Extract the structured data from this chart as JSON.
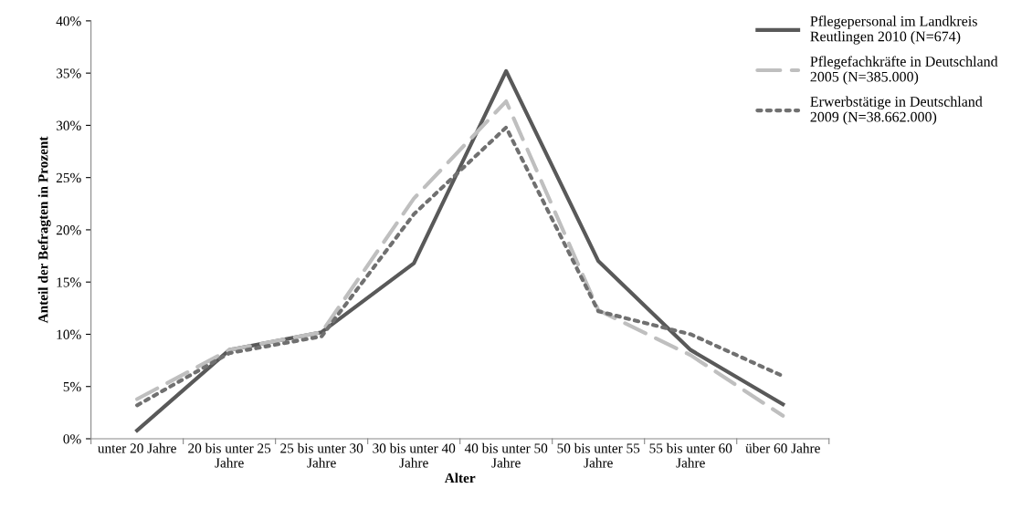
{
  "chart_data": {
    "type": "line",
    "xlabel": "Alter",
    "ylabel": "Anteil der Befragten in Prozent",
    "categories": [
      "unter 20 Jahre",
      "20 bis unter 25\nJahre",
      "25 bis unter 30\nJahre",
      "30 bis unter 40\nJahre",
      "40 bis unter 50\nJahre",
      "50 bis unter 55\nJahre",
      "55 bis unter 60\nJahre",
      "über 60 Jahre"
    ],
    "series": [
      {
        "name": "Pflegepersonal im Landkreis\nReutlingen 2010 (N=674)",
        "color": "#595959",
        "line_style": "solid",
        "values": [
          0.8,
          8.5,
          10.2,
          16.8,
          35.2,
          17.0,
          8.5,
          3.3
        ]
      },
      {
        "name": "Pflegefachkräfte in Deutschland\n2005 (N=385.000)",
        "color": "#bfbfbf",
        "line_style": "dashed",
        "values": [
          3.8,
          8.5,
          10.2,
          23.0,
          32.3,
          12.3,
          8.0,
          2.2
        ]
      },
      {
        "name": "Erwerbstätige in Deutschland\n2009 (N=38.662.000)",
        "color": "#707070",
        "line_style": "dotted",
        "values": [
          3.2,
          8.2,
          9.8,
          21.5,
          29.8,
          12.2,
          10.0,
          6.0
        ]
      }
    ],
    "ylim": [
      0,
      40
    ],
    "yticks": [
      {
        "value": 0,
        "label": "0%"
      },
      {
        "value": 5,
        "label": "5%"
      },
      {
        "value": 10,
        "label": "10%"
      },
      {
        "value": 15,
        "label": "15%"
      },
      {
        "value": 20,
        "label": "20%"
      },
      {
        "value": 25,
        "label": "25%"
      },
      {
        "value": 30,
        "label": "30%"
      },
      {
        "value": 35,
        "label": "35%"
      },
      {
        "value": 40,
        "label": "40%"
      }
    ],
    "grid": false,
    "legend": "top right",
    "marker": "none"
  }
}
